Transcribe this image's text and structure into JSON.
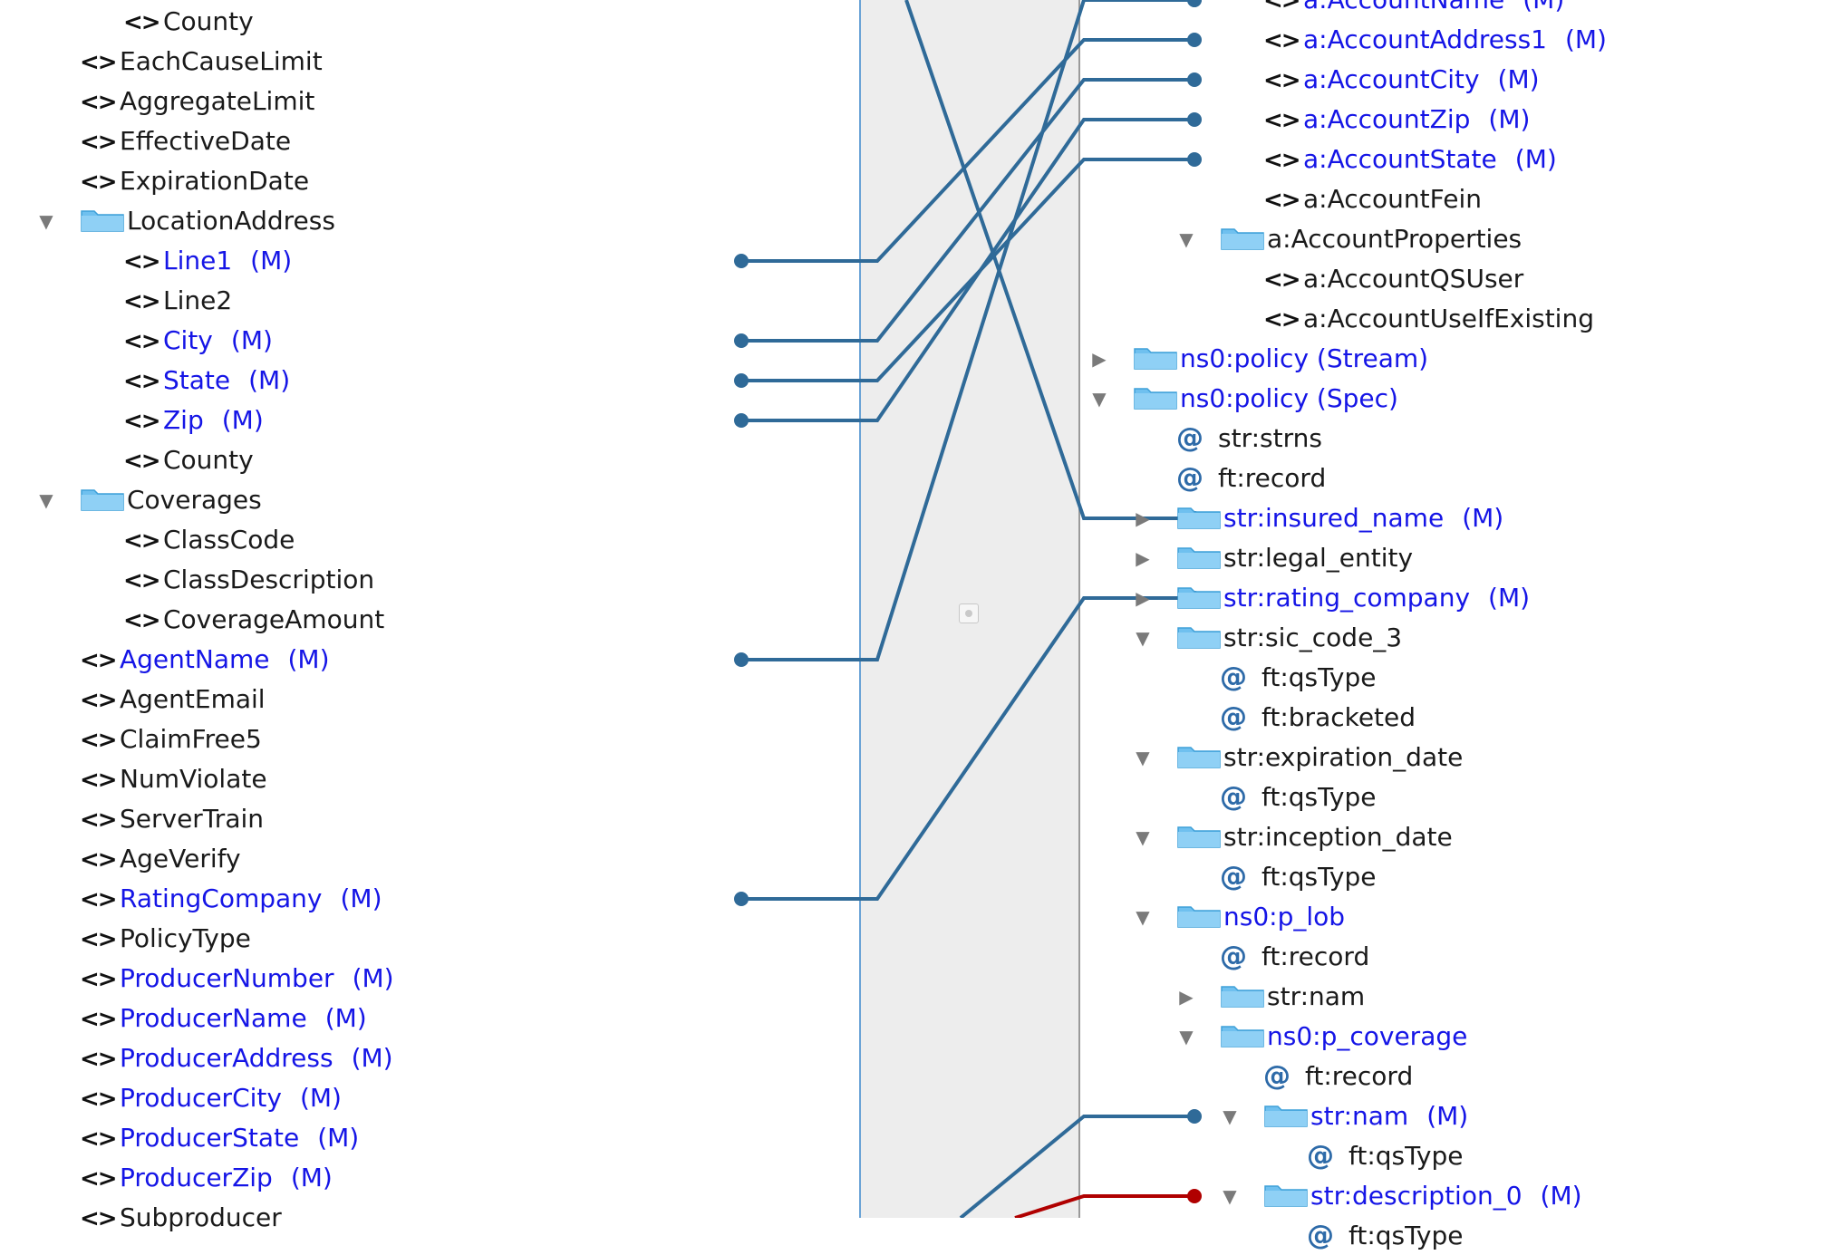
{
  "colors": {
    "link": "#2f6a98",
    "link_error": "#b00000",
    "required_text": "#1515e6",
    "folder": "#6fc0ef"
  },
  "source_tree": [
    {
      "label": "County",
      "kind": "element",
      "indent": 2,
      "req": false
    },
    {
      "label": "EachCauseLimit",
      "kind": "element",
      "indent": 1,
      "req": false
    },
    {
      "label": "AggregateLimit",
      "kind": "element",
      "indent": 1,
      "req": false
    },
    {
      "label": "EffectiveDate",
      "kind": "element",
      "indent": 1,
      "req": false
    },
    {
      "label": "ExpirationDate",
      "kind": "element",
      "indent": 1,
      "req": false
    },
    {
      "label": "LocationAddress",
      "kind": "folder",
      "indent": 1,
      "req": false,
      "expand": "open"
    },
    {
      "label": "Line1",
      "kind": "element",
      "indent": 2,
      "req": true,
      "mand": "(M)"
    },
    {
      "label": "Line2",
      "kind": "element",
      "indent": 2,
      "req": false
    },
    {
      "label": "City",
      "kind": "element",
      "indent": 2,
      "req": true,
      "mand": "(M)"
    },
    {
      "label": "State",
      "kind": "element",
      "indent": 2,
      "req": true,
      "mand": "(M)"
    },
    {
      "label": "Zip",
      "kind": "element",
      "indent": 2,
      "req": true,
      "mand": "(M)"
    },
    {
      "label": "County",
      "kind": "element",
      "indent": 2,
      "req": false
    },
    {
      "label": "Coverages",
      "kind": "folder",
      "indent": 1,
      "req": false,
      "expand": "open"
    },
    {
      "label": "ClassCode",
      "kind": "element",
      "indent": 2,
      "req": false
    },
    {
      "label": "ClassDescription",
      "kind": "element",
      "indent": 2,
      "req": false
    },
    {
      "label": "CoverageAmount",
      "kind": "element",
      "indent": 2,
      "req": false
    },
    {
      "label": "AgentName",
      "kind": "element",
      "indent": 1,
      "req": true,
      "mand": "(M)"
    },
    {
      "label": "AgentEmail",
      "kind": "element",
      "indent": 1,
      "req": false
    },
    {
      "label": "ClaimFree5",
      "kind": "element",
      "indent": 1,
      "req": false
    },
    {
      "label": "NumViolate",
      "kind": "element",
      "indent": 1,
      "req": false
    },
    {
      "label": "ServerTrain",
      "kind": "element",
      "indent": 1,
      "req": false
    },
    {
      "label": "AgeVerify",
      "kind": "element",
      "indent": 1,
      "req": false
    },
    {
      "label": "RatingCompany",
      "kind": "element",
      "indent": 1,
      "req": true,
      "mand": "(M)"
    },
    {
      "label": "PolicyType",
      "kind": "element",
      "indent": 1,
      "req": false
    },
    {
      "label": "ProducerNumber",
      "kind": "element",
      "indent": 1,
      "req": true,
      "mand": "(M)"
    },
    {
      "label": "ProducerName",
      "kind": "element",
      "indent": 1,
      "req": true,
      "mand": "(M)"
    },
    {
      "label": "ProducerAddress",
      "kind": "element",
      "indent": 1,
      "req": true,
      "mand": "(M)"
    },
    {
      "label": "ProducerCity",
      "kind": "element",
      "indent": 1,
      "req": true,
      "mand": "(M)"
    },
    {
      "label": "ProducerState",
      "kind": "element",
      "indent": 1,
      "req": true,
      "mand": "(M)"
    },
    {
      "label": "ProducerZip",
      "kind": "element",
      "indent": 1,
      "req": true,
      "mand": "(M)"
    },
    {
      "label": "Subproducer",
      "kind": "element",
      "indent": 1,
      "req": false
    }
  ],
  "target_tree": [
    {
      "label": "a:AccountName",
      "kind": "element",
      "indent": 4,
      "req": true,
      "mand": "(M)"
    },
    {
      "label": "a:AccountAddress1",
      "kind": "element",
      "indent": 4,
      "req": true,
      "mand": "(M)"
    },
    {
      "label": "a:AccountCity",
      "kind": "element",
      "indent": 4,
      "req": true,
      "mand": "(M)"
    },
    {
      "label": "a:AccountZip",
      "kind": "element",
      "indent": 4,
      "req": true,
      "mand": "(M)"
    },
    {
      "label": "a:AccountState",
      "kind": "element",
      "indent": 4,
      "req": true,
      "mand": "(M)"
    },
    {
      "label": "a:AccountFein",
      "kind": "element",
      "indent": 4,
      "req": false
    },
    {
      "label": "a:AccountProperties",
      "kind": "folder",
      "indent": 3,
      "req": false,
      "expand": "open"
    },
    {
      "label": "a:AccountQSUser",
      "kind": "element",
      "indent": 4,
      "req": false
    },
    {
      "label": "a:AccountUseIfExisting",
      "kind": "element",
      "indent": 4,
      "req": false
    },
    {
      "label": "ns0:policy (Stream)",
      "kind": "folder",
      "indent": 1,
      "req": true,
      "expand": "closed"
    },
    {
      "label": "ns0:policy (Spec)",
      "kind": "folder",
      "indent": 1,
      "req": true,
      "expand": "open"
    },
    {
      "label": "str:strns",
      "kind": "attr",
      "indent": 2,
      "req": false
    },
    {
      "label": "ft:record",
      "kind": "attr",
      "indent": 2,
      "req": false
    },
    {
      "label": "str:insured_name",
      "kind": "folder",
      "indent": 2,
      "req": true,
      "mand": "(M)",
      "expand": "closed"
    },
    {
      "label": "str:legal_entity",
      "kind": "folder",
      "indent": 2,
      "req": false,
      "expand": "closed"
    },
    {
      "label": "str:rating_company",
      "kind": "folder",
      "indent": 2,
      "req": true,
      "mand": "(M)",
      "expand": "closed"
    },
    {
      "label": "str:sic_code_3",
      "kind": "folder",
      "indent": 2,
      "req": false,
      "expand": "open"
    },
    {
      "label": "ft:qsType",
      "kind": "attr",
      "indent": 3,
      "req": false
    },
    {
      "label": "ft:bracketed",
      "kind": "attr",
      "indent": 3,
      "req": false
    },
    {
      "label": "str:expiration_date",
      "kind": "folder",
      "indent": 2,
      "req": false,
      "expand": "open"
    },
    {
      "label": "ft:qsType",
      "kind": "attr",
      "indent": 3,
      "req": false
    },
    {
      "label": "str:inception_date",
      "kind": "folder",
      "indent": 2,
      "req": false,
      "expand": "open"
    },
    {
      "label": "ft:qsType",
      "kind": "attr",
      "indent": 3,
      "req": false
    },
    {
      "label": "ns0:p_lob",
      "kind": "folder",
      "indent": 2,
      "req": true,
      "expand": "open"
    },
    {
      "label": "ft:record",
      "kind": "attr",
      "indent": 3,
      "req": false
    },
    {
      "label": "str:nam",
      "kind": "folder",
      "indent": 3,
      "req": false,
      "expand": "closed"
    },
    {
      "label": "ns0:p_coverage",
      "kind": "folder",
      "indent": 3,
      "req": true,
      "expand": "open"
    },
    {
      "label": "ft:record",
      "kind": "attr",
      "indent": 4,
      "req": false
    },
    {
      "label": "str:nam",
      "kind": "folder",
      "indent": 4,
      "req": true,
      "mand": "(M)",
      "expand": "open"
    },
    {
      "label": "ft:qsType",
      "kind": "attr",
      "indent": 5,
      "req": false
    },
    {
      "label": "str:description_0",
      "kind": "folder",
      "indent": 4,
      "req": true,
      "mand": "(M)",
      "expand": "open"
    },
    {
      "label": "ft:qsType",
      "kind": "attr",
      "indent": 5,
      "req": false
    }
  ],
  "mappings": [
    {
      "from": "Line1",
      "to": "a:AccountAddress1",
      "error": false
    },
    {
      "from": "City",
      "to": "a:AccountCity",
      "error": false
    },
    {
      "from": "State",
      "to": "a:AccountState",
      "error": false
    },
    {
      "from": "Zip",
      "to": "a:AccountZip",
      "error": false
    },
    {
      "from": "AgentName",
      "to": "a:AccountName",
      "error": false
    },
    {
      "from": "RatingCompany",
      "to": "str:rating_company",
      "error": false
    },
    {
      "from": "EachCauseLimit",
      "to": "str:insured_name",
      "error": false
    },
    {
      "from": "Subproducer",
      "to": "str:nam",
      "error": false
    },
    {
      "from": "Subproducer",
      "to": "str:description_0",
      "error": true
    }
  ]
}
